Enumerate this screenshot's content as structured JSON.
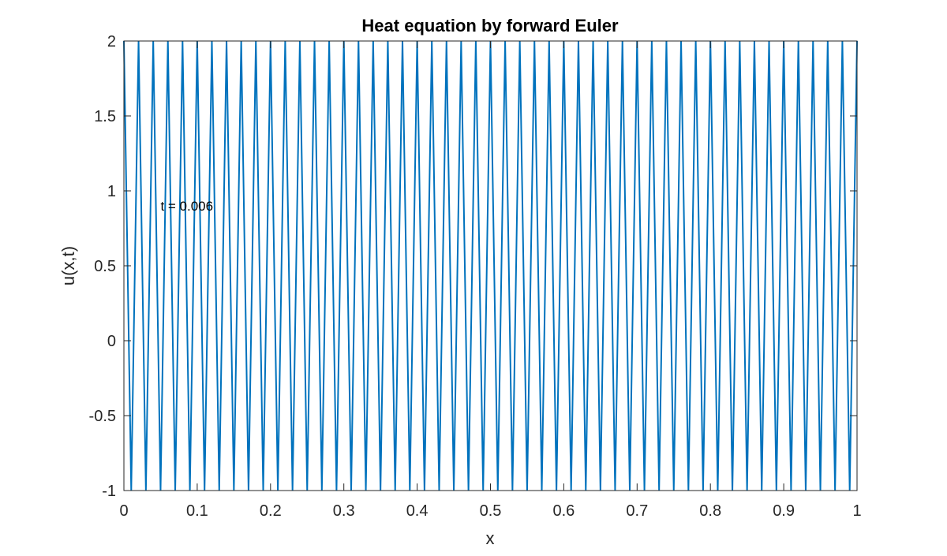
{
  "chart_data": {
    "type": "line",
    "title": "Heat equation by forward Euler",
    "xlabel": "x",
    "ylabel": "u(x,t)",
    "xlim": [
      0,
      1
    ],
    "ylim": [
      -1,
      2
    ],
    "xticks": [
      0,
      0.1,
      0.2,
      0.3,
      0.4,
      0.5,
      0.6,
      0.7,
      0.8,
      0.9,
      1
    ],
    "xtick_labels": [
      "0",
      "0.1",
      "0.2",
      "0.3",
      "0.4",
      "0.5",
      "0.6",
      "0.7",
      "0.8",
      "0.9",
      "1"
    ],
    "yticks": [
      -1,
      -0.5,
      0,
      0.5,
      1,
      1.5,
      2
    ],
    "ytick_labels": [
      "-1",
      "-0.5",
      "0",
      "0.5",
      "1",
      "1.5",
      "2"
    ],
    "grid": false,
    "annotation": {
      "text": "t = 0.006",
      "x": 0.05,
      "y": 0.9
    },
    "series": [
      {
        "color": "#0072BD",
        "x_grid_spacing": 0.01,
        "x_start": 0,
        "x_end": 1,
        "pattern": "alternating",
        "values_alternate": [
          2,
          -1
        ]
      }
    ]
  }
}
